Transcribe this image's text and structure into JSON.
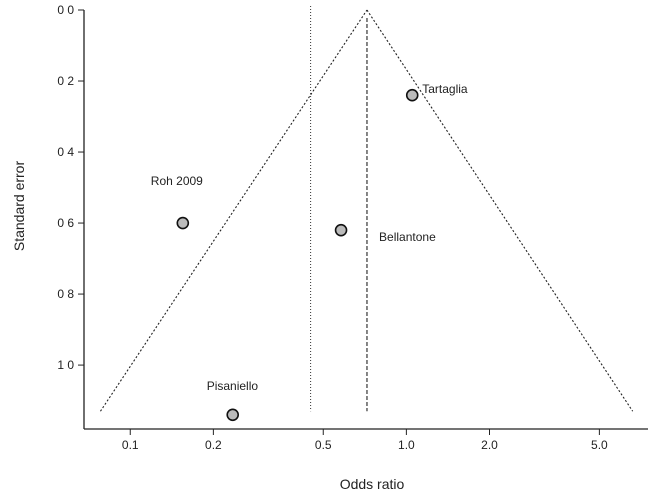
{
  "chart_data": {
    "type": "scatter",
    "subtype": "funnel plot",
    "xlabel": "Odds  ratio",
    "ylabel": "Standard error",
    "x_scale": "log",
    "y_inverted": true,
    "xlim": [
      0.068,
      7.5
    ],
    "ylim": [
      0,
      1.18
    ],
    "xticks": [
      0.1,
      0.2,
      0.5,
      1.0,
      2.0,
      5.0
    ],
    "xtick_labels": [
      "0.1",
      "0.2",
      "0.5",
      "1.0",
      "2.0",
      "5.0"
    ],
    "yticks": [
      0,
      0.2,
      0.4,
      0.6,
      0.8,
      1.0
    ],
    "ytick_labels": [
      "0 0",
      "0 2",
      "0 4",
      "0 6",
      "0 8",
      "1 0"
    ],
    "grid": false,
    "legend": "none",
    "points": [
      {
        "label": "Tartaglia",
        "x": 1.05,
        "y": 0.24
      },
      {
        "label": "Roh 2009",
        "x": 0.155,
        "y": 0.6
      },
      {
        "label": "Bellantone",
        "x": 0.58,
        "y": 0.62
      },
      {
        "label": "Pisaniello",
        "x": 0.235,
        "y": 1.14
      }
    ],
    "funnel": {
      "center_or": 0.72,
      "apex_se": 0,
      "base_se": 1.13,
      "left_or": 0.078,
      "right_or": 6.6
    },
    "reference_lines": {
      "dotted_or": 0.45,
      "dashed_or": 0.72,
      "bottom_se": 1.13
    }
  }
}
